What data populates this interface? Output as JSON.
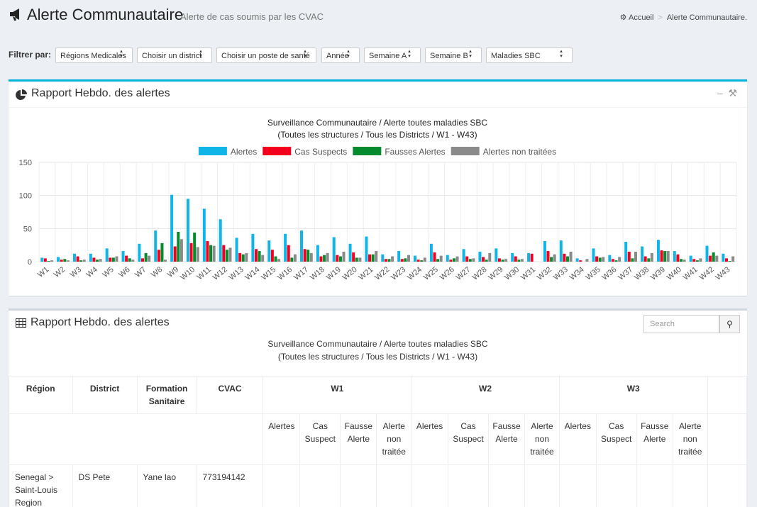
{
  "header": {
    "title": "Alerte Communautaire",
    "subtitle": "Alerte de cas soumis par les CVAC",
    "breadcrumb": [
      "Accueil",
      "Alerte Communautaire."
    ]
  },
  "filters": {
    "label": "Filtrer par:",
    "selects": [
      "Régions Medicales",
      "Choisir un district",
      "Choisir un poste de santé",
      "Année",
      "Semaine A",
      "Semaine B",
      "Maladies SBC"
    ]
  },
  "chart_panel": {
    "title": "Rapport Hebdo. des alertes"
  },
  "chart_data": {
    "type": "bar",
    "title": "Surveillance Communautaire / Alerte toutes maladies SBC",
    "subtitle": "(Toutes les structures / Tous les Districts / W1 - W43)",
    "categories": [
      "W1",
      "W2",
      "W3",
      "W4",
      "W5",
      "W6",
      "W7",
      "W8",
      "W9",
      "W10",
      "W11",
      "W12",
      "W13",
      "W14",
      "W15",
      "W16",
      "W17",
      "W18",
      "W19",
      "W20",
      "W21",
      "W22",
      "W23",
      "W24",
      "W25",
      "W26",
      "W27",
      "W28",
      "W29",
      "W30",
      "W31",
      "W32",
      "W33",
      "W34",
      "W35",
      "W36",
      "W37",
      "W38",
      "W39",
      "W40",
      "W41",
      "W42",
      "W43"
    ],
    "series": [
      {
        "name": "Alertes",
        "color": "#10b5e8",
        "values": [
          6,
          7,
          12,
          12,
          20,
          16,
          27,
          47,
          101,
          95,
          80,
          64,
          36,
          42,
          32,
          42,
          47,
          25,
          37,
          27,
          38,
          11,
          16,
          9,
          27,
          10,
          19,
          15,
          20,
          13,
          13,
          31,
          32,
          5,
          20,
          10,
          30,
          23,
          33,
          16,
          9,
          24,
          12
        ]
      },
      {
        "name": "Cas Suspects",
        "color": "#f2001c",
        "values": [
          5,
          3,
          8,
          6,
          6,
          9,
          5,
          18,
          23,
          28,
          31,
          25,
          13,
          19,
          18,
          25,
          19,
          8,
          10,
          14,
          11,
          4,
          4,
          3,
          14,
          3,
          8,
          7,
          5,
          8,
          12,
          16,
          12,
          2,
          8,
          4,
          15,
          8,
          17,
          11,
          4,
          9,
          5
        ]
      },
      {
        "name": "Fausses Alertes",
        "color": "#058a2d",
        "values": [
          1,
          4,
          2,
          3,
          6,
          5,
          13,
          28,
          45,
          44,
          25,
          18,
          11,
          16,
          8,
          6,
          18,
          10,
          8,
          6,
          11,
          4,
          5,
          2,
          4,
          5,
          4,
          3,
          3,
          3,
          0,
          7,
          8,
          0,
          6,
          2,
          5,
          5,
          16,
          4,
          2,
          14,
          1
        ]
      },
      {
        "name": "Alertes non traitées",
        "color": "#8a8a8a",
        "values": [
          2,
          2,
          3,
          4,
          8,
          3,
          9,
          3,
          34,
          22,
          24,
          21,
          13,
          10,
          4,
          11,
          13,
          13,
          15,
          6,
          16,
          8,
          10,
          6,
          9,
          8,
          5,
          13,
          4,
          4,
          0,
          11,
          15,
          4,
          7,
          7,
          15,
          13,
          16,
          3,
          5,
          9,
          8
        ]
      }
    ],
    "ylim": [
      0,
      150
    ],
    "yticks": [
      0,
      50,
      100,
      150
    ],
    "grid": true,
    "legend": "top"
  },
  "table_panel": {
    "title": "Rapport Hebdo. des alertes",
    "search_placeholder": "Search",
    "caption": [
      "Surveillance Communautaire / Alerte toutes maladies SBC",
      "(Toutes les structures / Tous les Districts / W1 - W43)"
    ],
    "columns": [
      "Région",
      "District",
      "Formation Sanitaire",
      "CVAC"
    ],
    "weeks": [
      "W1",
      "W2",
      "W3"
    ],
    "subcolumns": [
      "Alertes",
      "Cas Suspect",
      "Fausse Alerte",
      "Alerte non traitée"
    ],
    "rows": [
      [
        "Senegal > Saint-Louis Region",
        "DS Pete",
        "Yane lao",
        "773194142"
      ]
    ]
  }
}
